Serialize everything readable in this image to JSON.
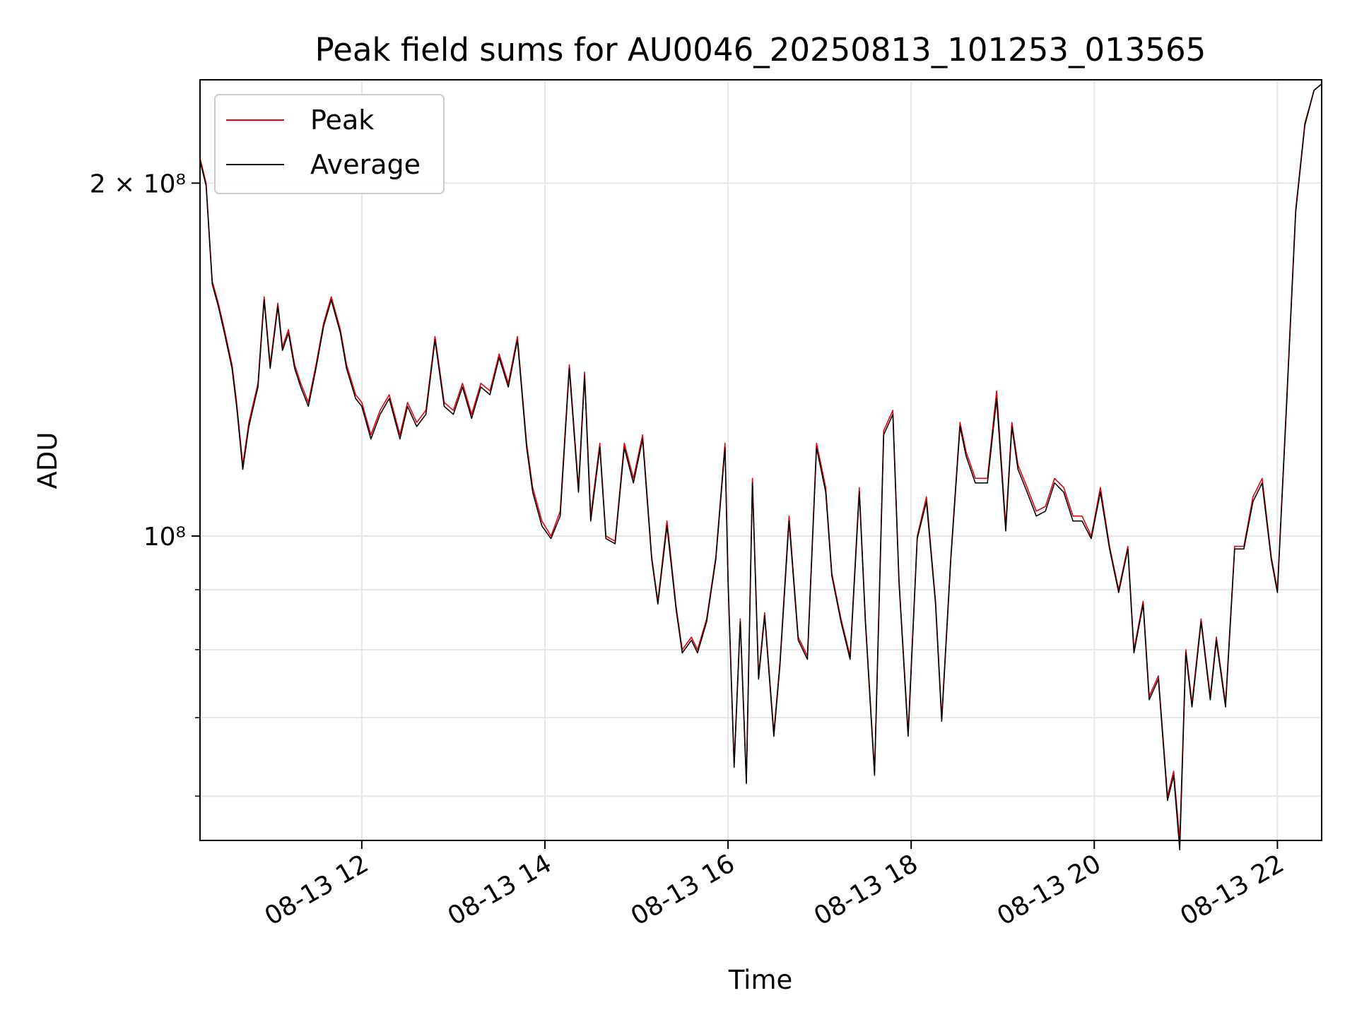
{
  "chart_data": {
    "type": "line",
    "title": "Peak field sums for AU0046_20250813_101253_013565",
    "xlabel": "Time",
    "ylabel": "ADU",
    "y_scale": "log",
    "ylim": [
      55000000,
      245000000
    ],
    "xlim": [
      "08-13 10:14",
      "08-13 22:29"
    ],
    "x_ticks": [
      "08-13 12",
      "08-13 14",
      "08-13 16",
      "08-13 18",
      "08-13 20",
      "08-13 22"
    ],
    "x_tick_values": [
      "08-13 12:00",
      "08-13 14:00",
      "08-13 16:00",
      "08-13 18:00",
      "08-13 20:00",
      "08-13 22:00"
    ],
    "y_ticks": [
      {
        "value": 200000000,
        "label": "2 × 10⁸"
      },
      {
        "value": 100000000,
        "label": "10⁸"
      }
    ],
    "y_minor_ticks": [
      60000000,
      70000000,
      80000000,
      90000000
    ],
    "grid": true,
    "legend_position": "top-left",
    "series": [
      {
        "name": "Peak",
        "color": "#e8000b",
        "x": [
          "08-13 10:14",
          "08-13 10:18",
          "08-13 10:22",
          "08-13 10:26",
          "08-13 10:30",
          "08-13 10:35",
          "08-13 10:38",
          "08-13 10:42",
          "08-13 10:46",
          "08-13 10:52",
          "08-13 10:56",
          "08-13 11:00",
          "08-13 11:05",
          "08-13 11:08",
          "08-13 11:12",
          "08-13 11:16",
          "08-13 11:20",
          "08-13 11:25",
          "08-13 11:30",
          "08-13 11:35",
          "08-13 11:40",
          "08-13 11:46",
          "08-13 11:50",
          "08-13 11:56",
          "08-13 12:00",
          "08-13 12:06",
          "08-13 12:12",
          "08-13 12:18",
          "08-13 12:25",
          "08-13 12:30",
          "08-13 12:36",
          "08-13 12:42",
          "08-13 12:48",
          "08-13 12:54",
          "08-13 13:00",
          "08-13 13:06",
          "08-13 13:12",
          "08-13 13:18",
          "08-13 13:24",
          "08-13 13:30",
          "08-13 13:36",
          "08-13 13:42",
          "08-13 13:48",
          "08-13 13:52",
          "08-13 13:58",
          "08-13 14:04",
          "08-13 14:10",
          "08-13 14:16",
          "08-13 14:22",
          "08-13 14:26",
          "08-13 14:30",
          "08-13 14:36",
          "08-13 14:40",
          "08-13 14:46",
          "08-13 14:52",
          "08-13 14:58",
          "08-13 15:04",
          "08-13 15:10",
          "08-13 15:14",
          "08-13 15:20",
          "08-13 15:26",
          "08-13 15:30",
          "08-13 15:36",
          "08-13 15:40",
          "08-13 15:46",
          "08-13 15:52",
          "08-13 15:58",
          "08-13 16:00",
          "08-13 16:04",
          "08-13 16:08",
          "08-13 16:12",
          "08-13 16:16",
          "08-13 16:20",
          "08-13 16:24",
          "08-13 16:30",
          "08-13 16:34",
          "08-13 16:40",
          "08-13 16:46",
          "08-13 16:52",
          "08-13 16:58",
          "08-13 17:04",
          "08-13 17:08",
          "08-13 17:14",
          "08-13 17:20",
          "08-13 17:26",
          "08-13 17:30",
          "08-13 17:36",
          "08-13 17:42",
          "08-13 17:48",
          "08-13 17:52",
          "08-13 17:58",
          "08-13 18:04",
          "08-13 18:10",
          "08-13 18:16",
          "08-13 18:20",
          "08-13 18:26",
          "08-13 18:32",
          "08-13 18:36",
          "08-13 18:42",
          "08-13 18:50",
          "08-13 18:56",
          "08-13 19:02",
          "08-13 19:06",
          "08-13 19:10",
          "08-13 19:16",
          "08-13 19:22",
          "08-13 19:28",
          "08-13 19:34",
          "08-13 19:40",
          "08-13 19:46",
          "08-13 19:52",
          "08-13 19:58",
          "08-13 20:04",
          "08-13 20:10",
          "08-13 20:16",
          "08-13 20:22",
          "08-13 20:26",
          "08-13 20:32",
          "08-13 20:36",
          "08-13 20:42",
          "08-13 20:48",
          "08-13 20:52",
          "08-13 20:56",
          "08-13 21:00",
          "08-13 21:04",
          "08-13 21:10",
          "08-13 21:16",
          "08-13 21:20",
          "08-13 21:26",
          "08-13 21:32",
          "08-13 21:38",
          "08-13 21:44",
          "08-13 21:50",
          "08-13 21:56",
          "08-13 22:00",
          "08-13 22:06",
          "08-13 22:12",
          "08-13 22:18",
          "08-13 22:24",
          "08-13 22:29"
        ],
        "values": [
          210000000,
          200000000,
          165000000,
          158000000,
          150000000,
          140000000,
          130000000,
          115000000,
          125000000,
          135000000,
          160000000,
          140000000,
          158000000,
          145000000,
          150000000,
          140000000,
          135000000,
          130000000,
          140000000,
          152000000,
          160000000,
          150000000,
          140000000,
          132000000,
          130000000,
          122000000,
          128000000,
          132000000,
          122000000,
          130000000,
          125000000,
          128000000,
          148000000,
          130000000,
          128000000,
          135000000,
          127000000,
          135000000,
          133000000,
          143000000,
          135000000,
          148000000,
          120000000,
          110000000,
          103000000,
          100000000,
          105000000,
          140000000,
          110000000,
          138000000,
          104000000,
          120000000,
          100000000,
          99000000,
          120000000,
          112000000,
          122000000,
          96000000,
          88000000,
          103000000,
          87000000,
          80000000,
          82000000,
          80000000,
          85000000,
          96000000,
          120000000,
          92000000,
          64000000,
          85000000,
          62000000,
          112000000,
          76000000,
          86000000,
          68000000,
          78000000,
          104000000,
          82000000,
          79000000,
          120000000,
          110000000,
          93000000,
          85000000,
          79000000,
          110000000,
          85000000,
          63000000,
          123000000,
          128000000,
          92000000,
          68000000,
          100000000,
          108000000,
          88000000,
          70000000,
          96000000,
          125000000,
          118000000,
          112000000,
          112000000,
          133000000,
          102000000,
          125000000,
          115000000,
          110000000,
          105000000,
          106000000,
          112000000,
          110000000,
          104000000,
          104000000,
          100000000,
          110000000,
          98000000,
          90000000,
          98000000,
          80000000,
          88000000,
          73000000,
          76000000,
          60000000,
          63000000,
          55000000,
          80000000,
          72000000,
          85000000,
          73000000,
          82000000,
          72000000,
          98000000,
          98000000,
          108000000,
          112000000,
          96000000,
          90000000,
          130000000,
          190000000,
          225000000,
          240000000,
          243000000
        ]
      },
      {
        "name": "Average",
        "color": "#000000",
        "x": [
          "08-13 10:14",
          "08-13 10:18",
          "08-13 10:22",
          "08-13 10:26",
          "08-13 10:30",
          "08-13 10:35",
          "08-13 10:38",
          "08-13 10:42",
          "08-13 10:46",
          "08-13 10:52",
          "08-13 10:56",
          "08-13 11:00",
          "08-13 11:05",
          "08-13 11:08",
          "08-13 11:12",
          "08-13 11:16",
          "08-13 11:20",
          "08-13 11:25",
          "08-13 11:30",
          "08-13 11:35",
          "08-13 11:40",
          "08-13 11:46",
          "08-13 11:50",
          "08-13 11:56",
          "08-13 12:00",
          "08-13 12:06",
          "08-13 12:12",
          "08-13 12:18",
          "08-13 12:25",
          "08-13 12:30",
          "08-13 12:36",
          "08-13 12:42",
          "08-13 12:48",
          "08-13 12:54",
          "08-13 13:00",
          "08-13 13:06",
          "08-13 13:12",
          "08-13 13:18",
          "08-13 13:24",
          "08-13 13:30",
          "08-13 13:36",
          "08-13 13:42",
          "08-13 13:48",
          "08-13 13:52",
          "08-13 13:58",
          "08-13 14:04",
          "08-13 14:10",
          "08-13 14:16",
          "08-13 14:22",
          "08-13 14:26",
          "08-13 14:30",
          "08-13 14:36",
          "08-13 14:40",
          "08-13 14:46",
          "08-13 14:52",
          "08-13 14:58",
          "08-13 15:04",
          "08-13 15:10",
          "08-13 15:14",
          "08-13 15:20",
          "08-13 15:26",
          "08-13 15:30",
          "08-13 15:36",
          "08-13 15:40",
          "08-13 15:46",
          "08-13 15:52",
          "08-13 15:58",
          "08-13 16:00",
          "08-13 16:04",
          "08-13 16:08",
          "08-13 16:12",
          "08-13 16:16",
          "08-13 16:20",
          "08-13 16:24",
          "08-13 16:30",
          "08-13 16:34",
          "08-13 16:40",
          "08-13 16:46",
          "08-13 16:52",
          "08-13 16:58",
          "08-13 17:04",
          "08-13 17:08",
          "08-13 17:14",
          "08-13 17:20",
          "08-13 17:26",
          "08-13 17:30",
          "08-13 17:36",
          "08-13 17:42",
          "08-13 17:48",
          "08-13 17:52",
          "08-13 17:58",
          "08-13 18:04",
          "08-13 18:10",
          "08-13 18:16",
          "08-13 18:20",
          "08-13 18:26",
          "08-13 18:32",
          "08-13 18:36",
          "08-13 18:42",
          "08-13 18:50",
          "08-13 18:56",
          "08-13 19:02",
          "08-13 19:06",
          "08-13 19:10",
          "08-13 19:16",
          "08-13 19:22",
          "08-13 19:28",
          "08-13 19:34",
          "08-13 19:40",
          "08-13 19:46",
          "08-13 19:52",
          "08-13 19:58",
          "08-13 20:04",
          "08-13 20:10",
          "08-13 20:16",
          "08-13 20:22",
          "08-13 20:26",
          "08-13 20:32",
          "08-13 20:36",
          "08-13 20:42",
          "08-13 20:48",
          "08-13 20:52",
          "08-13 20:56",
          "08-13 21:00",
          "08-13 21:04",
          "08-13 21:10",
          "08-13 21:16",
          "08-13 21:20",
          "08-13 21:26",
          "08-13 21:32",
          "08-13 21:38",
          "08-13 21:44",
          "08-13 21:50",
          "08-13 21:56",
          "08-13 22:00",
          "08-13 22:06",
          "08-13 22:12",
          "08-13 22:18",
          "08-13 22:24",
          "08-13 22:29"
        ],
        "values": [
          209000000,
          199000000,
          164000000,
          157000000,
          149000000,
          139000000,
          129000000,
          114000000,
          124000000,
          134000000,
          159000000,
          139000000,
          157000000,
          144000000,
          149000000,
          139000000,
          134000000,
          129000000,
          139000000,
          151000000,
          159000000,
          149000000,
          139000000,
          131000000,
          129000000,
          121000000,
          127000000,
          131000000,
          121000000,
          129000000,
          124000000,
          127000000,
          147000000,
          129000000,
          127000000,
          134000000,
          126000000,
          134000000,
          132000000,
          142000000,
          134000000,
          147000000,
          119000000,
          109000000,
          102000000,
          99500000,
          104000000,
          139000000,
          109000000,
          137000000,
          103000000,
          119000000,
          99500000,
          98500000,
          119000000,
          111000000,
          121000000,
          95500000,
          87500000,
          102000000,
          86500000,
          79500000,
          81500000,
          79500000,
          84500000,
          95500000,
          119000000,
          91500000,
          63500000,
          84500000,
          61500000,
          111000000,
          75500000,
          85500000,
          67500000,
          77500000,
          103000000,
          81500000,
          78500000,
          119000000,
          109000000,
          92500000,
          84500000,
          78500000,
          109000000,
          84500000,
          62500000,
          122000000,
          127000000,
          91500000,
          67500000,
          99500000,
          107000000,
          87500000,
          69500000,
          95500000,
          124000000,
          117000000,
          111000000,
          111000000,
          131000000,
          101000000,
          124000000,
          114000000,
          109000000,
          104000000,
          105000000,
          111000000,
          109000000,
          103000000,
          103000000,
          99500000,
          109000000,
          97500000,
          89500000,
          97500000,
          79500000,
          87500000,
          72500000,
          75500000,
          59500000,
          62500000,
          54000000,
          79500000,
          71500000,
          84500000,
          72500000,
          81500000,
          71500000,
          97500000,
          97500000,
          107000000,
          111000000,
          95500000,
          89500000,
          129000000,
          189000000,
          224000000,
          240000000,
          243000000
        ]
      }
    ]
  }
}
